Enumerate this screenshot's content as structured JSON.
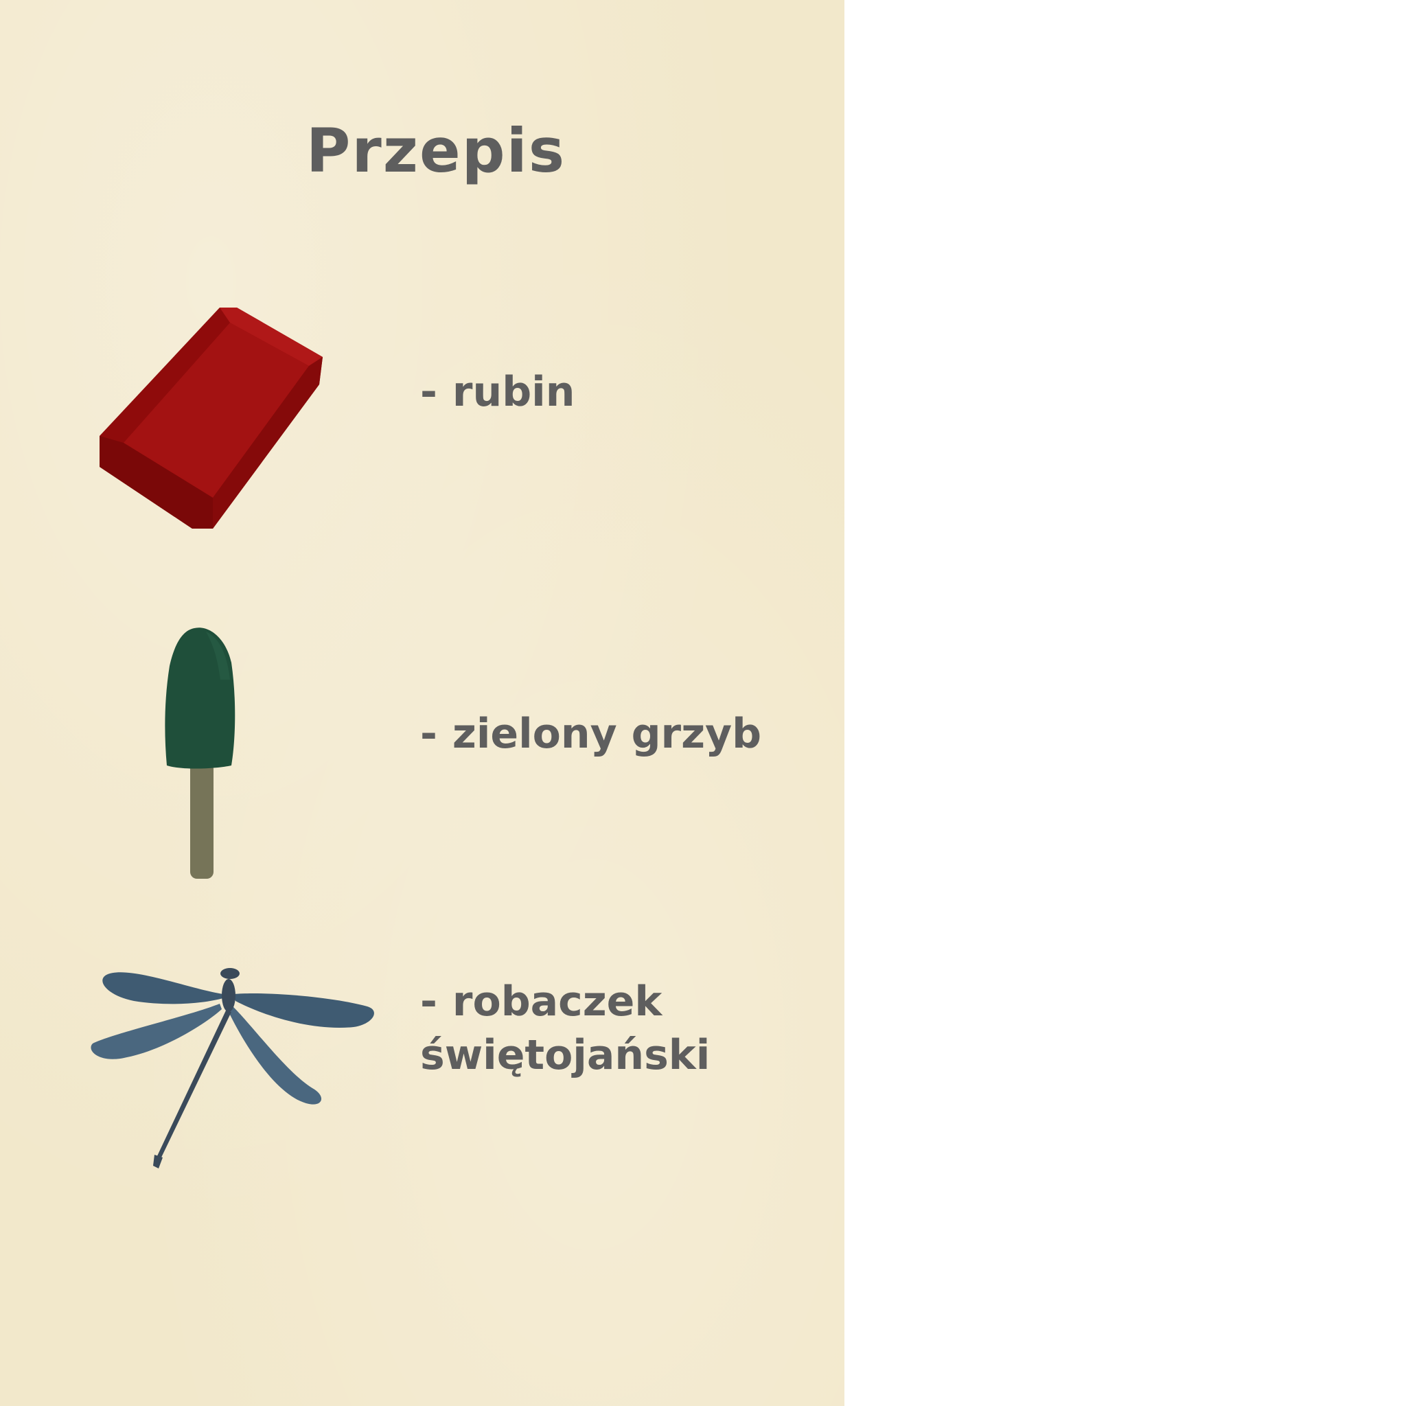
{
  "recipe": {
    "title": "Przepis",
    "dash": "-",
    "items": [
      {
        "name": "rubin",
        "icon": "ruby-icon",
        "color": "#9a0c0c"
      },
      {
        "name": "zielony grzyb",
        "icon": "green-mushroom-icon",
        "color": "#1f4f3a"
      },
      {
        "name_line1": "robaczek",
        "name_line2": "świętojański",
        "icon": "dragonfly-icon",
        "color": "#3f5b72"
      }
    ]
  }
}
